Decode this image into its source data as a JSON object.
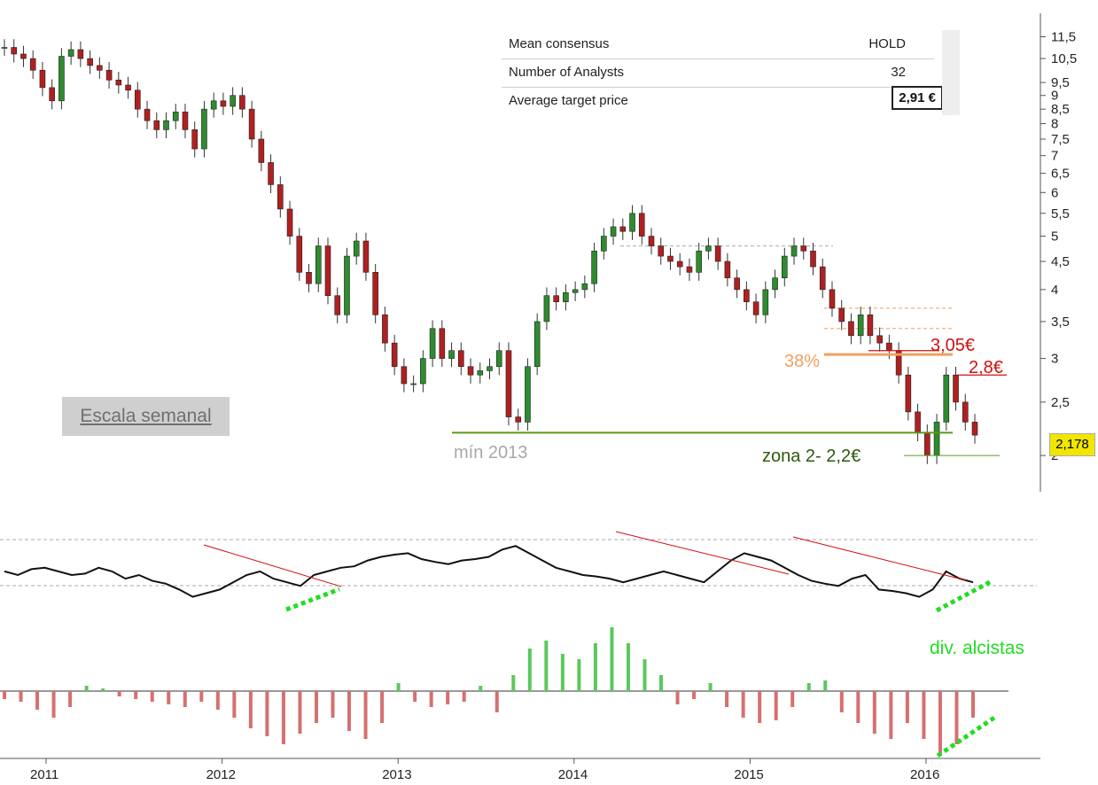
{
  "consensus": {
    "rows": [
      {
        "label": "Mean consensus",
        "value": "HOLD"
      },
      {
        "label": "Number of Analysts",
        "value": "32"
      },
      {
        "label": "Average target price",
        "value": "2,91 €"
      }
    ]
  },
  "overlay_label": "Escala semanal",
  "last_price_label": "2,178",
  "annotations": {
    "min_2013": "mín 2013",
    "zona": "zona 2- 2,2€",
    "fib38": "38%",
    "level_305": "3,05€",
    "level_28": "2,8€",
    "div": "div. alcistas"
  },
  "colors": {
    "candle_up": "#2e8b2e",
    "candle_down": "#b02020",
    "hist_up": "#5bc85b",
    "hist_down": "#d67070",
    "support": "#5a9a1a",
    "resistance": "#d01010",
    "fib": "#f0a060",
    "div_green": "#22dd22",
    "annotation_gray": "#a8a8a8",
    "zona_green": "#2d5a10"
  },
  "chart_data": [
    {
      "type": "candlestick",
      "x_ticks": [
        "2011",
        "2012",
        "2013",
        "2014",
        "2015",
        "2016"
      ],
      "y_ticks": [
        "11,5",
        "10,5",
        "9,5",
        "9",
        "8,5",
        "8",
        "7,5",
        "7",
        "6,5",
        "6",
        "5,5",
        "5",
        "4,5",
        "4",
        "3,5",
        "3",
        "2,5",
        "2"
      ],
      "y_scale": "log",
      "ylim": [
        1.9,
        12
      ],
      "last_price": 2.178,
      "close": [
        11.0,
        10.7,
        10.5,
        10.0,
        9.3,
        8.8,
        10.6,
        10.9,
        10.5,
        10.2,
        10.0,
        9.6,
        9.4,
        9.2,
        8.5,
        8.1,
        7.8,
        8.1,
        8.4,
        7.8,
        7.2,
        8.5,
        8.8,
        8.6,
        9.0,
        8.5,
        7.5,
        6.8,
        6.2,
        5.6,
        5.0,
        4.3,
        4.1,
        4.8,
        3.9,
        3.6,
        4.6,
        4.9,
        4.3,
        3.6,
        3.2,
        2.9,
        2.7,
        2.7,
        3.0,
        3.4,
        3.0,
        3.1,
        2.9,
        2.8,
        2.85,
        2.9,
        3.1,
        2.35,
        2.3,
        2.9,
        3.5,
        3.9,
        3.8,
        3.95,
        4.0,
        4.1,
        4.7,
        5.0,
        5.2,
        5.1,
        5.5,
        5.0,
        4.8,
        4.6,
        4.5,
        4.4,
        4.3,
        4.7,
        4.8,
        4.5,
        4.2,
        4.0,
        3.8,
        3.6,
        4.0,
        4.2,
        4.6,
        4.8,
        4.7,
        4.4,
        4.0,
        3.7,
        3.5,
        3.3,
        3.6,
        3.3,
        3.2,
        3.1,
        2.8,
        2.4,
        2.2,
        2.0,
        2.3,
        2.8,
        2.5,
        2.3,
        2.178
      ],
      "annotations": {
        "support_min_2013": 2.2,
        "zona": 2.0,
        "fib38": 3.05,
        "resistance_1": 3.1,
        "resistance_2": 2.8,
        "dashed_levels": [
          4.8,
          3.7,
          3.4
        ]
      }
    },
    {
      "type": "line",
      "name": "oscillator",
      "values": [
        0.55,
        0.5,
        0.58,
        0.6,
        0.55,
        0.5,
        0.52,
        0.6,
        0.55,
        0.45,
        0.5,
        0.42,
        0.38,
        0.3,
        0.2,
        0.25,
        0.3,
        0.4,
        0.5,
        0.55,
        0.45,
        0.4,
        0.35,
        0.5,
        0.55,
        0.6,
        0.62,
        0.7,
        0.75,
        0.78,
        0.8,
        0.72,
        0.68,
        0.65,
        0.7,
        0.72,
        0.75,
        0.85,
        0.9,
        0.8,
        0.7,
        0.6,
        0.55,
        0.5,
        0.48,
        0.45,
        0.4,
        0.45,
        0.5,
        0.55,
        0.5,
        0.45,
        0.4,
        0.55,
        0.7,
        0.8,
        0.75,
        0.7,
        0.6,
        0.5,
        0.42,
        0.38,
        0.35,
        0.45,
        0.5,
        0.3,
        0.28,
        0.25,
        0.2,
        0.3,
        0.55,
        0.45,
        0.4
      ]
    },
    {
      "type": "bar",
      "name": "histogram",
      "values": [
        -0.15,
        -0.2,
        -0.35,
        -0.5,
        -0.3,
        0.1,
        0.05,
        -0.1,
        -0.15,
        -0.2,
        -0.25,
        -0.3,
        -0.2,
        -0.35,
        -0.5,
        -0.7,
        -0.85,
        -1.0,
        -0.8,
        -0.6,
        -0.5,
        -0.75,
        -0.9,
        -0.6,
        0.15,
        -0.2,
        -0.3,
        -0.25,
        -0.2,
        0.1,
        -0.4,
        0.3,
        0.8,
        0.95,
        0.7,
        0.6,
        0.9,
        1.2,
        0.9,
        0.6,
        0.3,
        -0.25,
        -0.15,
        0.15,
        -0.3,
        -0.5,
        -0.6,
        -0.55,
        -0.3,
        0.15,
        0.2,
        -0.4,
        -0.6,
        -0.8,
        -0.9,
        -0.6,
        -0.9,
        -1.2,
        -1.0,
        -0.5
      ]
    }
  ]
}
